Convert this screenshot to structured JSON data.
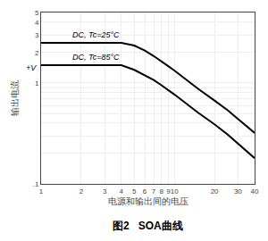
{
  "chart_data": {
    "type": "line",
    "xlabel": "电源和输出间的电压",
    "ylabel": "输出电流",
    "annotations": [
      "+V",
      "图2   SOA曲线"
    ],
    "log": true,
    "grid": true,
    "xlim": [
      1,
      40
    ],
    "ylim": [
      0.1,
      5
    ],
    "xticks": [
      1,
      2,
      3,
      4,
      5,
      6,
      7,
      8,
      9,
      10,
      20,
      30,
      40
    ],
    "yticks": [
      {
        "value": 0.1,
        "label": ".1"
      },
      {
        "value": 0.2,
        "label": null
      },
      {
        "value": 0.3,
        "label": null
      },
      {
        "value": 0.4,
        "label": null
      },
      {
        "value": 0.5,
        "label": null
      },
      {
        "value": 0.6,
        "label": null
      },
      {
        "value": 0.7,
        "label": null
      },
      {
        "value": 0.8,
        "label": null
      },
      {
        "value": 0.9,
        "label": null
      },
      1,
      2,
      3,
      4,
      5
    ],
    "x": [
      1.0,
      4.0,
      5.0,
      6.0,
      7.0,
      8.0,
      9.0,
      10.0,
      15.0,
      20.0,
      25.0,
      30.0,
      35.0,
      40.0
    ],
    "series": [
      {
        "name": "DC, Tc=25°C",
        "color": "#000000",
        "values": [
          2.5,
          2.5,
          2.35,
          2.1,
          1.85,
          1.65,
          1.47,
          1.33,
          0.88,
          0.67,
          0.54,
          0.44,
          0.37,
          0.32
        ]
      },
      {
        "name": "DC, Tc=85°C",
        "color": "#000000",
        "values": [
          1.5,
          1.5,
          1.35,
          1.2,
          1.07,
          0.95,
          0.85,
          0.77,
          0.51,
          0.39,
          0.31,
          0.25,
          0.21,
          0.18
        ]
      }
    ]
  }
}
